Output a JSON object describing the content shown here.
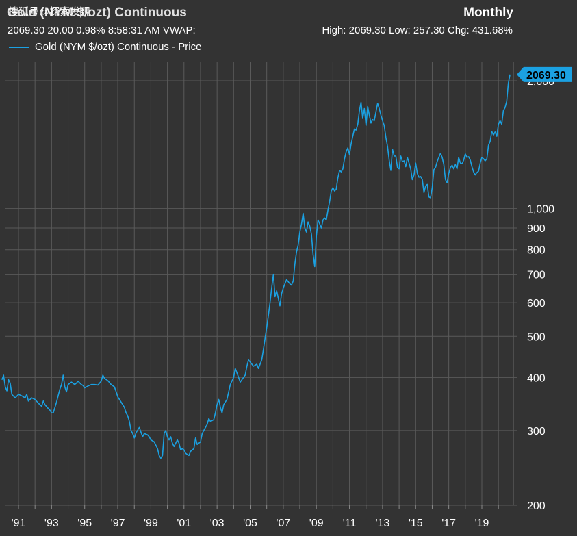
{
  "header": {
    "title": "Gold (NYM $/ozt) Continuous",
    "period": "Monthly",
    "quote": "2069.30 20.00 0.98% 8:58:31 AM VWAP:",
    "stats": "High: 2069.30 Low: 257.30 Chg: 431.68%"
  },
  "watermark": "搜狐号@探索发现",
  "legend": {
    "label": "Gold (NYM $/ozt) Continuous - Price"
  },
  "colors": {
    "background": "#333333",
    "grid": "#5a5a5a",
    "line": "#1ba1e2",
    "text": "#ffffff"
  },
  "chart_data": {
    "type": "line",
    "scale": "log",
    "series": [
      {
        "name": "Gold (NYM $/ozt) Continuous - Price"
      }
    ],
    "last_value_label": "2069.30",
    "y_ticks": [
      {
        "v": 200,
        "label": "200"
      },
      {
        "v": 300,
        "label": "300"
      },
      {
        "v": 400,
        "label": "400"
      },
      {
        "v": 500,
        "label": "500"
      },
      {
        "v": 600,
        "label": "600"
      },
      {
        "v": 700,
        "label": "700"
      },
      {
        "v": 800,
        "label": "800"
      },
      {
        "v": 900,
        "label": "900"
      },
      {
        "v": 1000,
        "label": "1,000"
      },
      {
        "v": 2000,
        "label": "2,000"
      }
    ],
    "ylim": [
      200,
      2200
    ],
    "x_ticks": [
      {
        "t": 1991,
        "label": "'91"
      },
      {
        "t": 1993,
        "label": "'93"
      },
      {
        "t": 1995,
        "label": "'95"
      },
      {
        "t": 1997,
        "label": "'97"
      },
      {
        "t": 1999,
        "label": "'99"
      },
      {
        "t": 2001,
        "label": "'01"
      },
      {
        "t": 2003,
        "label": "'03"
      },
      {
        "t": 2005,
        "label": "'05"
      },
      {
        "t": 2007,
        "label": "'07"
      },
      {
        "t": 2009,
        "label": "'09"
      },
      {
        "t": 2011,
        "label": "'11"
      },
      {
        "t": 2013,
        "label": "'13"
      },
      {
        "t": 2015,
        "label": "'15"
      },
      {
        "t": 2017,
        "label": "'17"
      },
      {
        "t": 2019,
        "label": "'19"
      }
    ],
    "xlim": [
      1990.0,
      2020.9
    ],
    "points": [
      [
        1990.0,
        395
      ],
      [
        1990.1,
        405
      ],
      [
        1990.2,
        380
      ],
      [
        1990.3,
        372
      ],
      [
        1990.4,
        395
      ],
      [
        1990.5,
        388
      ],
      [
        1990.6,
        365
      ],
      [
        1990.8,
        358
      ],
      [
        1991.0,
        365
      ],
      [
        1991.2,
        362
      ],
      [
        1991.4,
        358
      ],
      [
        1991.5,
        365
      ],
      [
        1991.6,
        352
      ],
      [
        1991.8,
        358
      ],
      [
        1992.0,
        355
      ],
      [
        1992.2,
        348
      ],
      [
        1992.4,
        342
      ],
      [
        1992.5,
        352
      ],
      [
        1992.6,
        345
      ],
      [
        1992.8,
        338
      ],
      [
        1992.9,
        335
      ],
      [
        1993.0,
        330
      ],
      [
        1993.1,
        330
      ],
      [
        1993.3,
        350
      ],
      [
        1993.5,
        375
      ],
      [
        1993.6,
        385
      ],
      [
        1993.7,
        405
      ],
      [
        1993.8,
        380
      ],
      [
        1993.9,
        370
      ],
      [
        1994.0,
        385
      ],
      [
        1994.2,
        390
      ],
      [
        1994.4,
        385
      ],
      [
        1994.5,
        388
      ],
      [
        1994.6,
        392
      ],
      [
        1994.8,
        385
      ],
      [
        1994.9,
        383
      ],
      [
        1995.0,
        378
      ],
      [
        1995.2,
        382
      ],
      [
        1995.4,
        385
      ],
      [
        1995.6,
        385
      ],
      [
        1995.8,
        384
      ],
      [
        1996.0,
        392
      ],
      [
        1996.1,
        405
      ],
      [
        1996.2,
        398
      ],
      [
        1996.4,
        393
      ],
      [
        1996.6,
        385
      ],
      [
        1996.8,
        380
      ],
      [
        1996.9,
        370
      ],
      [
        1997.0,
        360
      ],
      [
        1997.2,
        350
      ],
      [
        1997.4,
        340
      ],
      [
        1997.5,
        330
      ],
      [
        1997.6,
        325
      ],
      [
        1997.7,
        315
      ],
      [
        1997.8,
        300
      ],
      [
        1997.9,
        295
      ],
      [
        1998.0,
        288
      ],
      [
        1998.1,
        296
      ],
      [
        1998.3,
        305
      ],
      [
        1998.5,
        290
      ],
      [
        1998.6,
        295
      ],
      [
        1998.8,
        293
      ],
      [
        1998.9,
        290
      ],
      [
        1999.0,
        285
      ],
      [
        1999.2,
        282
      ],
      [
        1999.4,
        272
      ],
      [
        1999.5,
        262
      ],
      [
        1999.6,
        258
      ],
      [
        1999.7,
        262
      ],
      [
        1999.8,
        295
      ],
      [
        1999.9,
        300
      ],
      [
        2000.0,
        290
      ],
      [
        2000.1,
        285
      ],
      [
        2000.2,
        290
      ],
      [
        2000.3,
        280
      ],
      [
        2000.4,
        275
      ],
      [
        2000.6,
        285
      ],
      [
        2000.7,
        280
      ],
      [
        2000.8,
        270
      ],
      [
        2000.9,
        272
      ],
      [
        2001.0,
        270
      ],
      [
        2001.1,
        265
      ],
      [
        2001.3,
        262
      ],
      [
        2001.4,
        268
      ],
      [
        2001.5,
        270
      ],
      [
        2001.6,
        272
      ],
      [
        2001.7,
        288
      ],
      [
        2001.8,
        278
      ],
      [
        2001.9,
        280
      ],
      [
        2002.0,
        282
      ],
      [
        2002.1,
        295
      ],
      [
        2002.2,
        300
      ],
      [
        2002.4,
        310
      ],
      [
        2002.5,
        320
      ],
      [
        2002.6,
        315
      ],
      [
        2002.8,
        318
      ],
      [
        2002.9,
        330
      ],
      [
        2003.0,
        345
      ],
      [
        2003.1,
        355
      ],
      [
        2003.2,
        340
      ],
      [
        2003.3,
        330
      ],
      [
        2003.4,
        345
      ],
      [
        2003.6,
        355
      ],
      [
        2003.7,
        370
      ],
      [
        2003.8,
        385
      ],
      [
        2004.0,
        400
      ],
      [
        2004.1,
        420
      ],
      [
        2004.2,
        410
      ],
      [
        2004.4,
        390
      ],
      [
        2004.5,
        395
      ],
      [
        2004.7,
        405
      ],
      [
        2004.8,
        425
      ],
      [
        2004.9,
        440
      ],
      [
        2005.0,
        435
      ],
      [
        2005.2,
        425
      ],
      [
        2005.4,
        430
      ],
      [
        2005.5,
        420
      ],
      [
        2005.7,
        440
      ],
      [
        2005.8,
        465
      ],
      [
        2005.9,
        495
      ],
      [
        2006.0,
        525
      ],
      [
        2006.1,
        560
      ],
      [
        2006.2,
        600
      ],
      [
        2006.3,
        650
      ],
      [
        2006.4,
        700
      ],
      [
        2006.5,
        620
      ],
      [
        2006.6,
        640
      ],
      [
        2006.8,
        590
      ],
      [
        2006.9,
        630
      ],
      [
        2007.0,
        650
      ],
      [
        2007.2,
        680
      ],
      [
        2007.4,
        665
      ],
      [
        2007.5,
        660
      ],
      [
        2007.6,
        675
      ],
      [
        2007.7,
        740
      ],
      [
        2007.8,
        790
      ],
      [
        2007.9,
        820
      ],
      [
        2008.0,
        880
      ],
      [
        2008.1,
        920
      ],
      [
        2008.2,
        975
      ],
      [
        2008.3,
        900
      ],
      [
        2008.4,
        880
      ],
      [
        2008.5,
        930
      ],
      [
        2008.6,
        910
      ],
      [
        2008.7,
        870
      ],
      [
        2008.8,
        780
      ],
      [
        2008.9,
        730
      ],
      [
        2009.0,
        860
      ],
      [
        2009.1,
        940
      ],
      [
        2009.2,
        920
      ],
      [
        2009.3,
        900
      ],
      [
        2009.4,
        940
      ],
      [
        2009.5,
        950
      ],
      [
        2009.6,
        940
      ],
      [
        2009.7,
        990
      ],
      [
        2009.8,
        1040
      ],
      [
        2009.9,
        1100
      ],
      [
        2010.0,
        1120
      ],
      [
        2010.1,
        1100
      ],
      [
        2010.2,
        1110
      ],
      [
        2010.3,
        1180
      ],
      [
        2010.4,
        1230
      ],
      [
        2010.5,
        1220
      ],
      [
        2010.6,
        1240
      ],
      [
        2010.7,
        1310
      ],
      [
        2010.8,
        1360
      ],
      [
        2010.9,
        1390
      ],
      [
        2011.0,
        1340
      ],
      [
        2011.1,
        1420
      ],
      [
        2011.2,
        1480
      ],
      [
        2011.3,
        1540
      ],
      [
        2011.4,
        1530
      ],
      [
        2011.5,
        1580
      ],
      [
        2011.6,
        1700
      ],
      [
        2011.7,
        1780
      ],
      [
        2011.8,
        1630
      ],
      [
        2011.9,
        1720
      ],
      [
        2012.0,
        1570
      ],
      [
        2012.1,
        1740
      ],
      [
        2012.2,
        1660
      ],
      [
        2012.3,
        1590
      ],
      [
        2012.4,
        1620
      ],
      [
        2012.5,
        1610
      ],
      [
        2012.6,
        1690
      ],
      [
        2012.7,
        1770
      ],
      [
        2012.8,
        1720
      ],
      [
        2012.9,
        1660
      ],
      [
        2013.0,
        1610
      ],
      [
        2013.1,
        1570
      ],
      [
        2013.2,
        1470
      ],
      [
        2013.3,
        1400
      ],
      [
        2013.4,
        1300
      ],
      [
        2013.5,
        1230
      ],
      [
        2013.6,
        1380
      ],
      [
        2013.7,
        1330
      ],
      [
        2013.8,
        1330
      ],
      [
        2013.9,
        1250
      ],
      [
        2014.0,
        1240
      ],
      [
        2014.1,
        1330
      ],
      [
        2014.2,
        1290
      ],
      [
        2014.3,
        1295
      ],
      [
        2014.4,
        1255
      ],
      [
        2014.5,
        1320
      ],
      [
        2014.6,
        1280
      ],
      [
        2014.7,
        1240
      ],
      [
        2014.8,
        1170
      ],
      [
        2014.9,
        1200
      ],
      [
        2015.0,
        1280
      ],
      [
        2015.1,
        1210
      ],
      [
        2015.2,
        1185
      ],
      [
        2015.3,
        1190
      ],
      [
        2015.4,
        1170
      ],
      [
        2015.5,
        1090
      ],
      [
        2015.6,
        1130
      ],
      [
        2015.7,
        1140
      ],
      [
        2015.8,
        1065
      ],
      [
        2015.9,
        1060
      ],
      [
        2016.0,
        1120
      ],
      [
        2016.1,
        1235
      ],
      [
        2016.2,
        1250
      ],
      [
        2016.3,
        1290
      ],
      [
        2016.4,
        1320
      ],
      [
        2016.5,
        1350
      ],
      [
        2016.6,
        1320
      ],
      [
        2016.7,
        1270
      ],
      [
        2016.8,
        1170
      ],
      [
        2016.9,
        1150
      ],
      [
        2017.0,
        1210
      ],
      [
        2017.1,
        1250
      ],
      [
        2017.2,
        1265
      ],
      [
        2017.3,
        1240
      ],
      [
        2017.4,
        1270
      ],
      [
        2017.5,
        1240
      ],
      [
        2017.6,
        1320
      ],
      [
        2017.7,
        1280
      ],
      [
        2017.8,
        1275
      ],
      [
        2017.9,
        1300
      ],
      [
        2018.0,
        1345
      ],
      [
        2018.1,
        1320
      ],
      [
        2018.2,
        1325
      ],
      [
        2018.3,
        1300
      ],
      [
        2018.4,
        1255
      ],
      [
        2018.5,
        1220
      ],
      [
        2018.6,
        1200
      ],
      [
        2018.7,
        1215
      ],
      [
        2018.8,
        1225
      ],
      [
        2018.9,
        1280
      ],
      [
        2019.0,
        1320
      ],
      [
        2019.1,
        1310
      ],
      [
        2019.2,
        1295
      ],
      [
        2019.3,
        1310
      ],
      [
        2019.4,
        1410
      ],
      [
        2019.5,
        1440
      ],
      [
        2019.6,
        1520
      ],
      [
        2019.7,
        1490
      ],
      [
        2019.8,
        1515
      ],
      [
        2019.9,
        1480
      ],
      [
        2020.0,
        1580
      ],
      [
        2020.1,
        1610
      ],
      [
        2020.2,
        1580
      ],
      [
        2020.3,
        1700
      ],
      [
        2020.4,
        1730
      ],
      [
        2020.5,
        1790
      ],
      [
        2020.6,
        1975
      ],
      [
        2020.7,
        2069.3
      ]
    ]
  }
}
